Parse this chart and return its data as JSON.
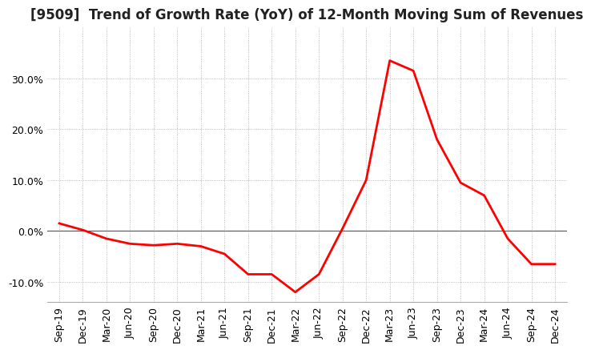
{
  "title": "[9509]  Trend of Growth Rate (YoY) of 12-Month Moving Sum of Revenues",
  "line_color": "#ff0000",
  "background_color": "#ffffff",
  "grid_color": "#aaaaaa",
  "zero_line_color": "#555555",
  "x_labels": [
    "Sep-19",
    "Dec-19",
    "Mar-20",
    "Jun-20",
    "Sep-20",
    "Dec-20",
    "Mar-21",
    "Jun-21",
    "Sep-21",
    "Dec-21",
    "Mar-22",
    "Jun-22",
    "Sep-22",
    "Dec-22",
    "Mar-23",
    "Jun-23",
    "Sep-23",
    "Dec-23",
    "Mar-24",
    "Jun-24",
    "Sep-24",
    "Dec-24"
  ],
  "y_values": [
    1.5,
    0.2,
    -1.5,
    -2.5,
    -2.8,
    -2.5,
    -3.0,
    -4.5,
    -8.5,
    -8.5,
    -12.0,
    -8.5,
    0.5,
    10.0,
    33.5,
    31.5,
    18.0,
    9.5,
    7.0,
    -1.5,
    -6.5,
    -6.5
  ],
  "ylim": [
    -14,
    40
  ],
  "yticks": [
    -10.0,
    0.0,
    10.0,
    20.0,
    30.0
  ],
  "title_fontsize": 12,
  "tick_fontsize": 9
}
